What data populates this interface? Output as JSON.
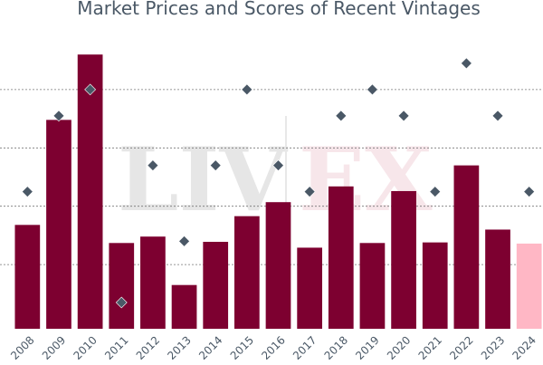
{
  "chart_data": {
    "type": "bar",
    "title": "Market Prices and Scores of Recent Vintages",
    "categories": [
      "2008",
      "2009",
      "2010",
      "2011",
      "2012",
      "2013",
      "2014",
      "2015",
      "2016",
      "2017",
      "2018",
      "2019",
      "2020",
      "2021",
      "2022",
      "2023",
      "2024"
    ],
    "series": [
      {
        "kind": "bar",
        "values": [
          1.18,
          2.98,
          4.1,
          0.87,
          0.98,
          0.15,
          0.89,
          1.33,
          1.57,
          0.79,
          1.84,
          0.87,
          1.76,
          0.88,
          2.2,
          1.1,
          0.86
        ],
        "color": "#7d0030",
        "highlight_index": 16,
        "highlight_color": "#ffb7c5"
      },
      {
        "kind": "scatter",
        "marker": "diamond",
        "values": [
          1.75,
          3.05,
          3.5,
          -0.15,
          2.2,
          0.9,
          2.2,
          3.5,
          2.2,
          1.75,
          3.05,
          3.5,
          3.05,
          1.75,
          3.95,
          3.05,
          1.75
        ],
        "color": "#4a5866"
      }
    ],
    "ylim": [
      -0.6,
      4.6
    ],
    "gridlines": [
      0.5,
      1.5,
      2.5,
      3.5
    ],
    "grid": true,
    "legend": "none"
  },
  "watermark": {
    "text_left": "LIV",
    "text_right": "EX",
    "color_left": "#e6e6e6",
    "color_right": "#f7e6ea"
  }
}
